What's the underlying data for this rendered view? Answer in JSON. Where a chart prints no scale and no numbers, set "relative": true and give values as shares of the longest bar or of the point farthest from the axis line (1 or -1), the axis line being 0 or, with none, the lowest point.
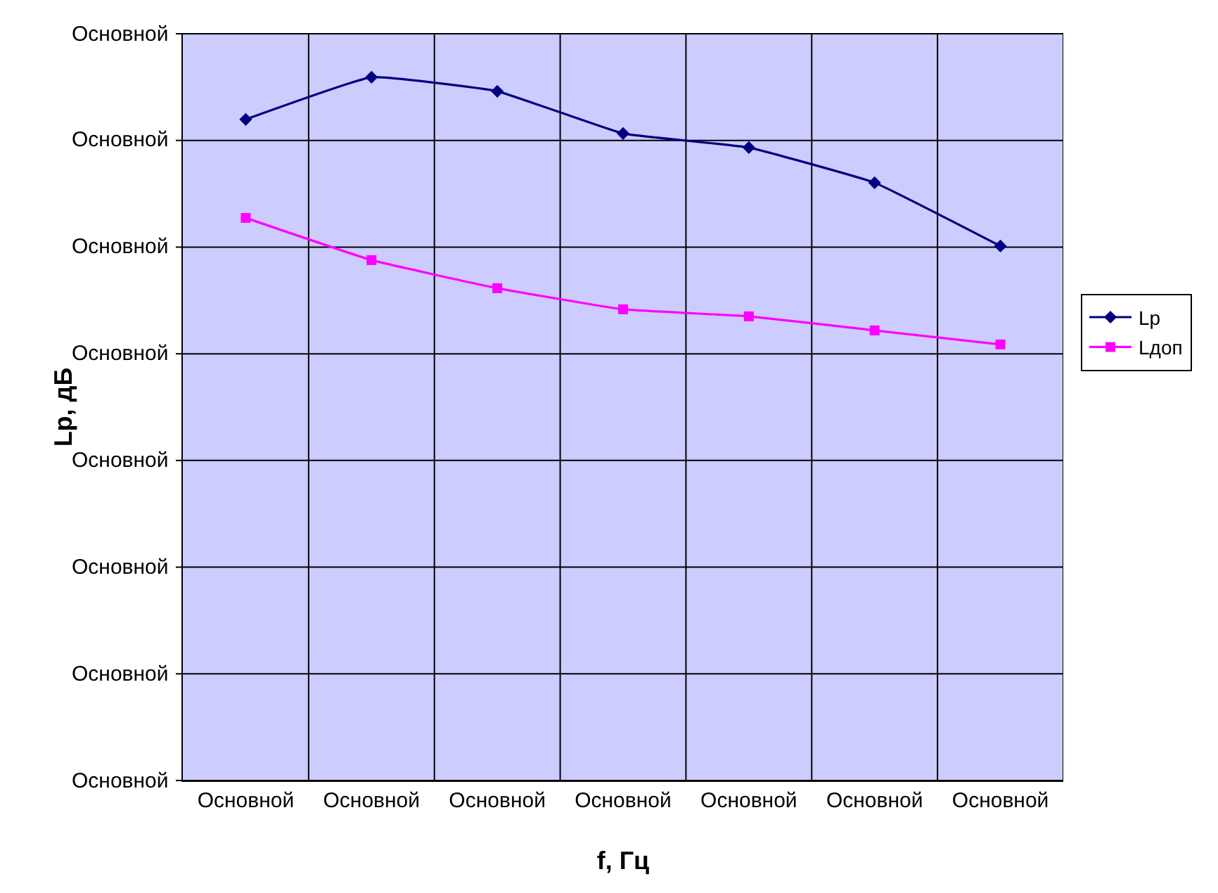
{
  "chart_data": {
    "type": "line",
    "relative": true,
    "xlabel": "f, Гц",
    "ylabel": "Lp, дБ",
    "categories": [
      "Основной",
      "Основной",
      "Основной",
      "Основной",
      "Основной",
      "Основной",
      "Основной"
    ],
    "series": [
      {
        "name": "Lp",
        "color": "#000080",
        "marker": "diamond",
        "values": [
          0.94,
          1,
          0.98,
          0.92,
          0.9,
          0.85,
          0.76
        ]
      },
      {
        "name": "Lдоп",
        "color": "#ff00ff",
        "marker": "square",
        "values": [
          0.8,
          0.74,
          0.7,
          0.67,
          0.66,
          0.64,
          0.62
        ]
      }
    ],
    "annotations": [
      "Основной",
      "Основной",
      "Основной",
      "Основной",
      "Основной",
      "Основной",
      "Основной",
      "Основной"
    ],
    "grid": true,
    "legend": "right",
    "line_style": "solid"
  }
}
